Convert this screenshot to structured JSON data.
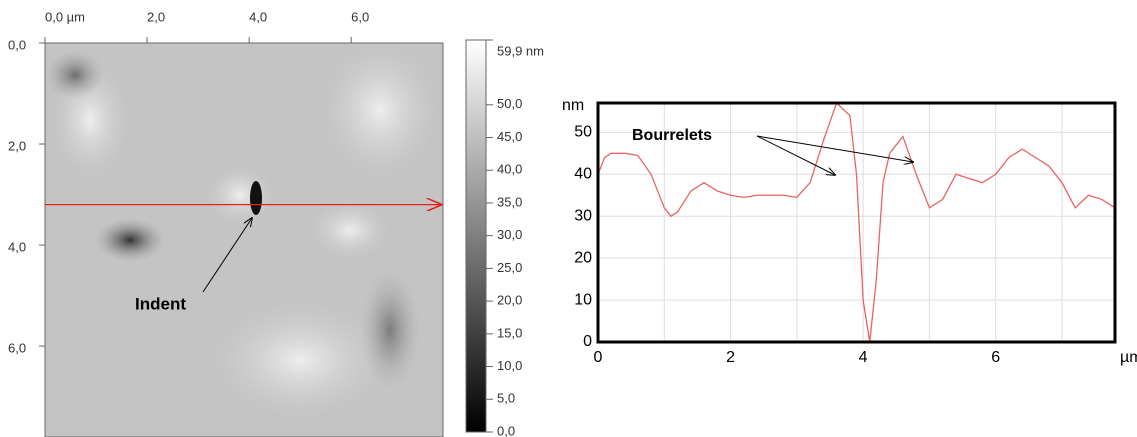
{
  "chart_data": [
    {
      "type": "image",
      "xlim": [
        0,
        7.8
      ],
      "ylim": [
        0,
        7.8
      ],
      "xticks": [
        {
          "value": 0,
          "label": "0,0 µm"
        },
        {
          "value": 2,
          "label": "2,0"
        },
        {
          "value": 4,
          "label": "4,0"
        },
        {
          "value": 6,
          "label": "6,0"
        }
      ],
      "yticks": [
        {
          "value": 0,
          "label": "0,0"
        },
        {
          "value": 2,
          "label": "2,0"
        },
        {
          "value": 4,
          "label": "4,0"
        },
        {
          "value": 6,
          "label": "6,0"
        }
      ],
      "profile_line_y": 3.2,
      "profile_line_color": "#e8211a",
      "annotation": "Indent",
      "colorbar": {
        "lim": [
          0,
          59.9
        ],
        "ticks": [
          {
            "value": 59.9,
            "label": "59,9 nm"
          },
          {
            "value": 50,
            "label": "50,0"
          },
          {
            "value": 45,
            "label": "45,0"
          },
          {
            "value": 40,
            "label": "40,0"
          },
          {
            "value": 35,
            "label": "35,0"
          },
          {
            "value": 30,
            "label": "30,0"
          },
          {
            "value": 25,
            "label": "25,0"
          },
          {
            "value": 20,
            "label": "20,0"
          },
          {
            "value": 15,
            "label": "15,0"
          },
          {
            "value": 10,
            "label": "10,0"
          },
          {
            "value": 5,
            "label": "5,0"
          },
          {
            "value": 0,
            "label": "0,0"
          }
        ]
      }
    },
    {
      "type": "line",
      "x_label": "µm",
      "y_label": "nm",
      "annotation": "Bourrelets",
      "xlim": [
        0,
        7.8
      ],
      "ylim": [
        0,
        57
      ],
      "xticks": [
        0,
        2,
        4,
        6
      ],
      "minor_xticks": [
        1,
        3,
        5,
        7
      ],
      "yticks": [
        0,
        10,
        20,
        30,
        40,
        50
      ],
      "grid": true,
      "series": [
        {
          "color": "#e8645f",
          "x": [
            0,
            0.1,
            0.2,
            0.4,
            0.6,
            0.8,
            1.0,
            1.1,
            1.2,
            1.4,
            1.6,
            1.8,
            2.0,
            2.2,
            2.4,
            2.6,
            2.8,
            3.0,
            3.2,
            3.4,
            3.6,
            3.8,
            3.9,
            4.0,
            4.1,
            4.2,
            4.3,
            4.4,
            4.6,
            4.8,
            5.0,
            5.2,
            5.4,
            5.6,
            5.8,
            6.0,
            6.2,
            6.4,
            6.6,
            6.8,
            7.0,
            7.2,
            7.4,
            7.6,
            7.8
          ],
          "values": [
            40,
            44,
            45,
            45,
            44.5,
            40,
            32,
            30,
            31,
            36,
            38,
            36,
            35,
            34.5,
            35,
            35,
            35,
            34.5,
            38,
            48,
            57,
            54,
            40,
            10,
            0,
            15,
            38,
            45,
            49,
            40,
            32,
            34,
            40,
            39,
            38,
            40,
            44,
            46,
            44,
            42,
            38,
            32,
            35,
            34,
            32
          ]
        }
      ]
    }
  ]
}
